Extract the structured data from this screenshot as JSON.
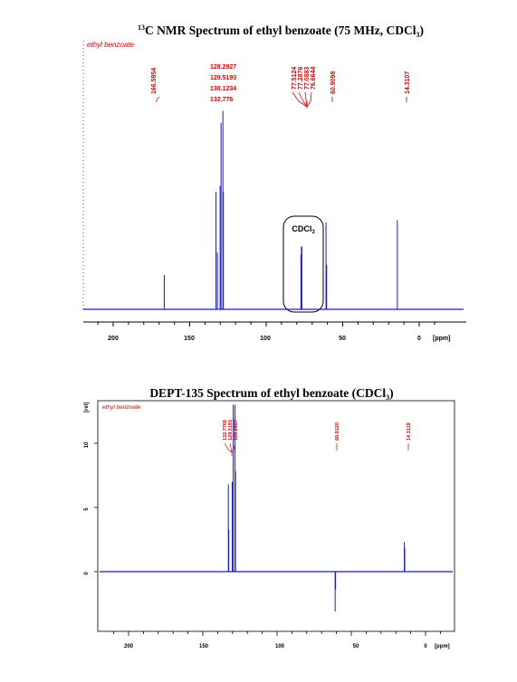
{
  "colors": {
    "spectrum": "#1a1adb",
    "annotation": "#e00000",
    "axis": "#000000",
    "baseline_dept": "#1a1adb"
  },
  "chart_data": [
    {
      "type": "line",
      "title_sup": "13",
      "title_main": "C NMR Spectrum of ethyl benzoate (75 MHz, CDCl",
      "title_sub": "3",
      "title_end": ")",
      "sample_label": "ethyl benzoate",
      "xlabel": "[ppm]",
      "x_direction": "reversed",
      "xlim": [
        222,
        -8
      ],
      "ylim": [
        0,
        1.0
      ],
      "x_ticks": [
        "200",
        "150",
        "100",
        "50",
        "0"
      ],
      "box_label_main": "CDCl",
      "box_label_sub": "3",
      "peak_labels_left": [
        "166.5954"
      ],
      "peak_labels_aromatic": [
        "128.2927",
        "129.5193",
        "130.1234",
        "132.776"
      ],
      "peak_labels_solvent": [
        "77.5124",
        "77.2876",
        "77.0883",
        "76.6644"
      ],
      "peak_labels_right": [
        "60.9098",
        "14.3107"
      ],
      "peaks": [
        {
          "ppm": 166.6,
          "height": 0.17
        },
        {
          "ppm": 132.8,
          "height": 0.58
        },
        {
          "ppm": 131.9,
          "height": 0.28
        },
        {
          "ppm": 130.1,
          "height": 0.61
        },
        {
          "ppm": 129.5,
          "height": 0.92
        },
        {
          "ppm": 128.3,
          "height": 0.98
        },
        {
          "ppm": 128.0,
          "height": 0.58
        },
        {
          "ppm": 77.3,
          "height": 0.27
        },
        {
          "ppm": 77.0,
          "height": 0.31
        },
        {
          "ppm": 76.7,
          "height": 0.31
        },
        {
          "ppm": 60.9,
          "height": 0.43
        },
        {
          "ppm": 60.5,
          "height": 0.22
        },
        {
          "ppm": 14.3,
          "height": 0.44
        }
      ]
    },
    {
      "type": "line",
      "title_main": "DEPT-135 Spectrum of ethyl benzoate (CDCl",
      "title_sub": "3",
      "title_end": ")",
      "sample_label": "ethyl benzoate",
      "xlabel": "[ppm]",
      "ylabel": "[rel]",
      "x_direction": "reversed",
      "xlim": [
        222,
        -8
      ],
      "ylim": [
        -4,
        13
      ],
      "x_ticks": [
        "200",
        "150",
        "100",
        "50",
        "0"
      ],
      "y_ticks": [
        "10",
        "5",
        "0"
      ],
      "peak_labels_aromatic": [
        "132.7766",
        "129.5193",
        "128.2927"
      ],
      "peak_labels_right": [
        "60.9120",
        "14.3119"
      ],
      "peaks": [
        {
          "ppm": 132.8,
          "height": 6.8
        },
        {
          "ppm": 132.5,
          "height": 3.3
        },
        {
          "ppm": 130.2,
          "height": 7.0
        },
        {
          "ppm": 129.5,
          "height": 13.0
        },
        {
          "ppm": 128.3,
          "height": 13.0
        },
        {
          "ppm": 128.0,
          "height": 7.8
        },
        {
          "ppm": 60.9,
          "height": -3.1
        },
        {
          "ppm": 60.6,
          "height": -1.4
        },
        {
          "ppm": 14.3,
          "height": 2.3
        },
        {
          "ppm": 14.0,
          "height": 1.8
        }
      ]
    }
  ]
}
